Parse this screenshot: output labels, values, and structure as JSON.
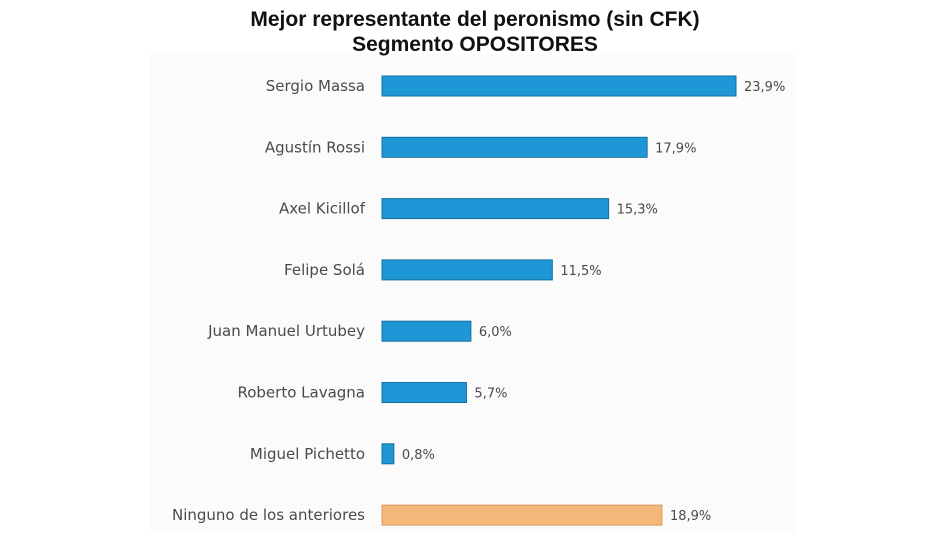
{
  "colors": {
    "bar": "#1f96d5",
    "bar_stroke": "#13709f",
    "highlight_bar": "#f5b87a",
    "highlight_stroke": "#d89a5c",
    "text": "#4a4a4a",
    "title": "#111111"
  },
  "chart_data": {
    "type": "bar",
    "orientation": "horizontal",
    "title": "Mejor representante del peronismo (sin CFK)",
    "subtitle": "Segmento OPOSITORES",
    "categories": [
      "Sergio Massa",
      "Agustín Rossi",
      "Axel Kicillof",
      "Felipe Solá",
      "Juan Manuel Urtubey",
      "Roberto Lavagna",
      "Miguel Pichetto",
      "Ninguno de los anteriores"
    ],
    "values": [
      23.9,
      17.9,
      15.3,
      11.5,
      6.0,
      5.7,
      0.8,
      18.9
    ],
    "value_labels": [
      "23,9%",
      "17,9%",
      "15,3%",
      "11,5%",
      "6,0%",
      "5,7%",
      "0,8%",
      "18,9%"
    ],
    "highlight_category": "Ninguno de los anteriores",
    "xlim": [
      0,
      23.9
    ],
    "grid": false,
    "legend": "none"
  }
}
